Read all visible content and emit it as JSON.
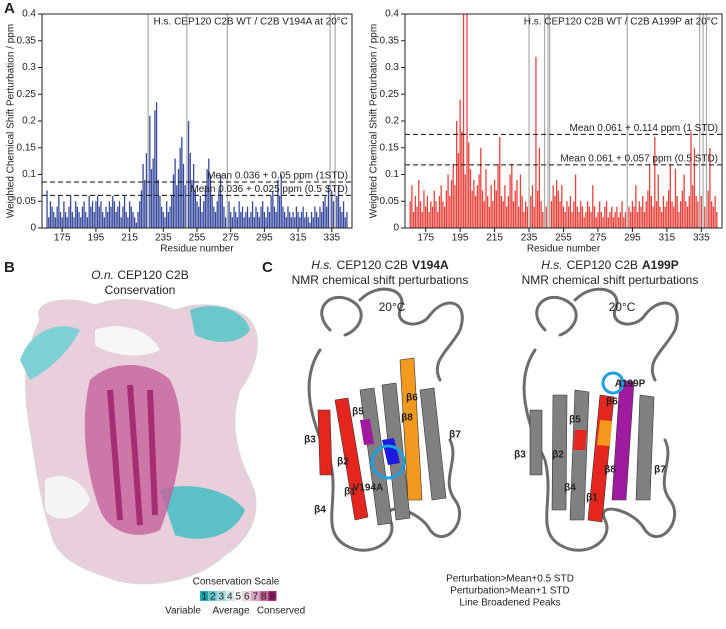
{
  "panel_a": {
    "label": "A"
  },
  "chart_data": [
    {
      "type": "bar",
      "title": "H.s. CEP120 C2B WT / C2B V194A at 20°C",
      "x_label": "Residue number",
      "y_label": "Weighted Chemical Shift Perturbation / ppm",
      "color": "#33479c",
      "xlim": [
        163,
        347
      ],
      "ylim": [
        0,
        0.4
      ],
      "xticks": [
        175,
        195,
        215,
        235,
        255,
        275,
        295,
        315,
        335
      ],
      "yticks": [
        0,
        0.05,
        0.1,
        0.15,
        0.2,
        0.25,
        0.3,
        0.35,
        0.4
      ],
      "vlines": [
        226,
        249,
        273,
        334,
        337
      ],
      "hlines": [
        {
          "value": 0.086,
          "label": "Mean 0.036 + 0.05 ppm (1STD)"
        },
        {
          "value": 0.061,
          "label": "Mean 0.036 + 0.025 ppm (0.5 STD)"
        }
      ],
      "x": [
        166,
        167,
        168,
        169,
        170,
        171,
        172,
        173,
        174,
        175,
        176,
        177,
        178,
        179,
        180,
        181,
        182,
        183,
        184,
        185,
        186,
        187,
        188,
        189,
        190,
        191,
        192,
        193,
        194,
        195,
        196,
        197,
        198,
        199,
        200,
        201,
        202,
        203,
        204,
        205,
        206,
        207,
        208,
        209,
        210,
        211,
        212,
        213,
        214,
        215,
        216,
        217,
        218,
        219,
        220,
        221,
        222,
        223,
        224,
        225,
        226,
        227,
        228,
        229,
        230,
        231,
        232,
        233,
        234,
        235,
        236,
        237,
        238,
        239,
        240,
        241,
        242,
        243,
        244,
        245,
        246,
        247,
        248,
        249,
        250,
        251,
        252,
        253,
        254,
        255,
        256,
        257,
        258,
        259,
        260,
        261,
        262,
        263,
        264,
        265,
        266,
        267,
        268,
        269,
        270,
        271,
        272,
        273,
        274,
        275,
        276,
        277,
        278,
        279,
        280,
        281,
        282,
        283,
        284,
        285,
        286,
        287,
        288,
        289,
        290,
        291,
        292,
        293,
        294,
        295,
        296,
        297,
        298,
        299,
        300,
        301,
        302,
        303,
        304,
        305,
        306,
        307,
        308,
        309,
        310,
        311,
        312,
        313,
        314,
        315,
        316,
        317,
        318,
        319,
        320,
        321,
        322,
        323,
        324,
        325,
        326,
        327,
        328,
        329,
        330,
        331,
        332,
        333,
        334,
        335,
        336,
        337,
        338,
        339,
        340,
        341,
        342,
        343,
        344
      ],
      "values": [
        0.07,
        0.02,
        0.05,
        0.04,
        0.03,
        0.02,
        0.04,
        0.06,
        0.03,
        0.02,
        0.05,
        0.03,
        0.02,
        0.04,
        0.06,
        0.03,
        0.02,
        0.05,
        0.04,
        0.03,
        0.02,
        0.04,
        0.05,
        0.03,
        0.02,
        0.06,
        0.04,
        0.05,
        0.03,
        0.05,
        0.06,
        0.04,
        0.05,
        0.03,
        0.02,
        0.04,
        0.03,
        0.05,
        0.04,
        0.06,
        0.05,
        0.03,
        0.04,
        0.05,
        0.02,
        0.04,
        0.06,
        0.03,
        0.02,
        0.05,
        0.04,
        0.03,
        0.02,
        0.01,
        0.03,
        0.05,
        0.07,
        0.12,
        0.09,
        0.14,
        null,
        0.21,
        0.11,
        0.13,
        0.22,
        0.235,
        0.09,
        0.06,
        0.04,
        0.03,
        0.02,
        0.05,
        0.03,
        0.04,
        0.06,
        0.1,
        0.13,
        0.08,
        0.11,
        0.15,
        0.17,
        0.12,
        0.08,
        null,
        0.2,
        0.14,
        0.09,
        0.12,
        0.07,
        0.05,
        0.04,
        0.06,
        0.03,
        0.05,
        0.08,
        0.11,
        0.13,
        0.1,
        0.06,
        0.04,
        0.03,
        0.05,
        0.07,
        0.1,
        0.06,
        0.04,
        0.02,
        null,
        0.05,
        0.03,
        0.02,
        0.04,
        0.03,
        0.02,
        0.05,
        0.03,
        0.04,
        0.02,
        0.03,
        0.04,
        0.02,
        0.03,
        0.05,
        0.02,
        0.04,
        0.03,
        0.02,
        0.04,
        0.05,
        0.03,
        0.02,
        0.04,
        0.03,
        0.06,
        0.07,
        0.04,
        0.03,
        0.09,
        0.06,
        0.1,
        0.04,
        0.03,
        0.02,
        0.04,
        0.03,
        0.02,
        0.03,
        0.02,
        0.04,
        0.03,
        0.02,
        0.03,
        0.04,
        0.02,
        0.03,
        0.02,
        0.01,
        0.03,
        0.02,
        0.04,
        0.03,
        0.02,
        0.04,
        0.03,
        0.05,
        0.06,
        0.04,
        0.08,
        null,
        0.07,
        0.05,
        null,
        0.06,
        0.08,
        0.04,
        0.03,
        0.05,
        0.02,
        0.03
      ]
    },
    {
      "type": "bar",
      "title": "H.s. CEP120 C2B WT / C2B A199P at 20°C",
      "x_label": "Residue number",
      "y_label": "Weighted Chemical Shift Perturbation / ppm",
      "color": "#e8403a",
      "xlim": [
        163,
        347
      ],
      "ylim": [
        0,
        0.4
      ],
      "xticks": [
        175,
        195,
        215,
        235,
        255,
        275,
        295,
        315,
        335
      ],
      "yticks": [
        0,
        0.05,
        0.1,
        0.15,
        0.2,
        0.25,
        0.3,
        0.35,
        0.4
      ],
      "vlines": [
        235,
        244,
        246,
        247,
        292,
        334,
        336,
        338
      ],
      "hlines": [
        {
          "value": 0.175,
          "label": "Mean 0.061 + 0.114 ppm (1 STD)"
        },
        {
          "value": 0.118,
          "label": "Mean 0.061 + 0.057 ppm (0.5 STD)"
        }
      ],
      "x": [
        166,
        167,
        168,
        169,
        170,
        171,
        172,
        173,
        174,
        175,
        176,
        177,
        178,
        179,
        180,
        181,
        182,
        183,
        184,
        185,
        186,
        187,
        188,
        189,
        190,
        191,
        192,
        193,
        194,
        195,
        196,
        197,
        198,
        199,
        200,
        201,
        202,
        203,
        204,
        205,
        206,
        207,
        208,
        209,
        210,
        211,
        212,
        213,
        214,
        215,
        216,
        217,
        218,
        219,
        220,
        221,
        222,
        223,
        224,
        225,
        226,
        227,
        228,
        229,
        230,
        231,
        232,
        233,
        234,
        235,
        236,
        237,
        238,
        239,
        240,
        241,
        242,
        243,
        244,
        245,
        246,
        247,
        248,
        249,
        250,
        251,
        252,
        253,
        254,
        255,
        256,
        257,
        258,
        259,
        260,
        261,
        262,
        263,
        264,
        265,
        266,
        267,
        268,
        269,
        270,
        271,
        272,
        273,
        274,
        275,
        276,
        277,
        278,
        279,
        280,
        281,
        282,
        283,
        284,
        285,
        286,
        287,
        288,
        289,
        290,
        291,
        292,
        293,
        294,
        295,
        296,
        297,
        298,
        299,
        300,
        301,
        302,
        303,
        304,
        305,
        306,
        307,
        308,
        309,
        310,
        311,
        312,
        313,
        314,
        315,
        316,
        317,
        318,
        319,
        320,
        321,
        322,
        323,
        324,
        325,
        326,
        327,
        328,
        329,
        330,
        331,
        332,
        333,
        334,
        335,
        336,
        337,
        338,
        339,
        340,
        341,
        342,
        343,
        344
      ],
      "values": [
        0.05,
        0.08,
        0.03,
        0.06,
        0.04,
        0.09,
        0.05,
        0.03,
        0.07,
        0.04,
        0.06,
        0.03,
        0.05,
        0.04,
        0.07,
        0.05,
        0.03,
        0.06,
        0.08,
        0.05,
        0.04,
        0.07,
        0.1,
        0.06,
        0.09,
        0.12,
        0.08,
        0.2,
        0.14,
        0.24,
        0.18,
        0.4,
        0.1,
        0.4,
        0.16,
        0.11,
        0.07,
        0.09,
        0.06,
        0.08,
        0.1,
        0.15,
        0.07,
        0.05,
        0.11,
        0.06,
        0.04,
        0.08,
        0.05,
        0.09,
        0.07,
        0.12,
        0.17,
        0.06,
        0.05,
        0.08,
        0.04,
        0.06,
        0.1,
        0.12,
        0.05,
        0.07,
        0.09,
        0.04,
        0.1,
        0.06,
        0.03,
        0.05,
        0.04,
        null,
        0.06,
        0.08,
        0.04,
        0.32,
        0.07,
        0.15,
        0.05,
        0.03,
        null,
        0.04,
        null,
        null,
        0.05,
        0.08,
        0.06,
        0.09,
        0.07,
        0.05,
        0.08,
        0.04,
        0.03,
        0.05,
        0.04,
        0.06,
        0.03,
        0.05,
        0.1,
        0.04,
        0.03,
        0.05,
        0.04,
        0.02,
        0.03,
        0.05,
        0.04,
        0.03,
        0.08,
        0.04,
        0.02,
        0.03,
        0.05,
        0.03,
        0.02,
        0.04,
        0.05,
        0.02,
        0.03,
        0.04,
        0.02,
        0.03,
        0.04,
        0.02,
        0.03,
        0.05,
        0.02,
        0.03,
        null,
        0.04,
        0.03,
        0.05,
        0.04,
        0.08,
        0.03,
        0.05,
        0.04,
        0.06,
        0.03,
        0.05,
        0.07,
        0.12,
        0.06,
        0.04,
        0.17,
        0.05,
        0.1,
        0.04,
        0.03,
        0.06,
        0.04,
        0.05,
        0.07,
        0.12,
        0.05,
        0.04,
        0.11,
        0.06,
        0.03,
        0.05,
        0.07,
        0.1,
        0.05,
        0.04,
        0.06,
        0.18,
        0.08,
        0.15,
        0.06,
        0.05,
        null,
        0.06,
        null,
        0.04,
        null,
        0.07,
        0.15,
        0.05,
        0.04,
        0.06,
        0.03
      ]
    }
  ],
  "panel_b": {
    "label": "B",
    "species": "O.n.",
    "title": "CEP120 C2B",
    "subtitle": "Conservation",
    "scale_title": "Conservation Scale",
    "scale": [
      "1",
      "2",
      "3",
      "4",
      "5",
      "6",
      "7",
      "8",
      "9"
    ],
    "scale_colors": [
      "#17a2aa",
      "#5cc4c9",
      "#a5dde0",
      "#d6eff0",
      "#ffffff",
      "#efd6e4",
      "#dba6c4",
      "#c4609a",
      "#9b1b66"
    ],
    "scale_ends": [
      "Variable",
      "Average",
      "Conserved"
    ]
  },
  "panel_c": {
    "label": "C",
    "left": {
      "species": "H.s.",
      "title": "CEP120 C2B",
      "mutant": "V194A",
      "subtitle": "NMR chemical shift perturbations",
      "temp": "20°C",
      "strands": [
        "β1",
        "β2",
        "β3",
        "β4",
        "β5",
        "β6",
        "β7",
        "β8"
      ],
      "site": "V194A"
    },
    "right": {
      "species": "H.s.",
      "title": "CEP120 C2B",
      "mutant": "A199P",
      "subtitle": "NMR chemical shift perturbations",
      "temp": "20°C",
      "strands": [
        "β1",
        "β2",
        "β3",
        "β4",
        "β5",
        "β6",
        "β7",
        "β8"
      ],
      "site": "A199P"
    },
    "legend": [
      {
        "label": "Perturbation>Mean+0.5 STD",
        "color": "#f39a1e"
      },
      {
        "label": "Perturbation>Mean+1 STD",
        "color": "#e5261f"
      },
      {
        "label": "Line Broadened Peaks",
        "color": "#a01aa0"
      }
    ]
  }
}
